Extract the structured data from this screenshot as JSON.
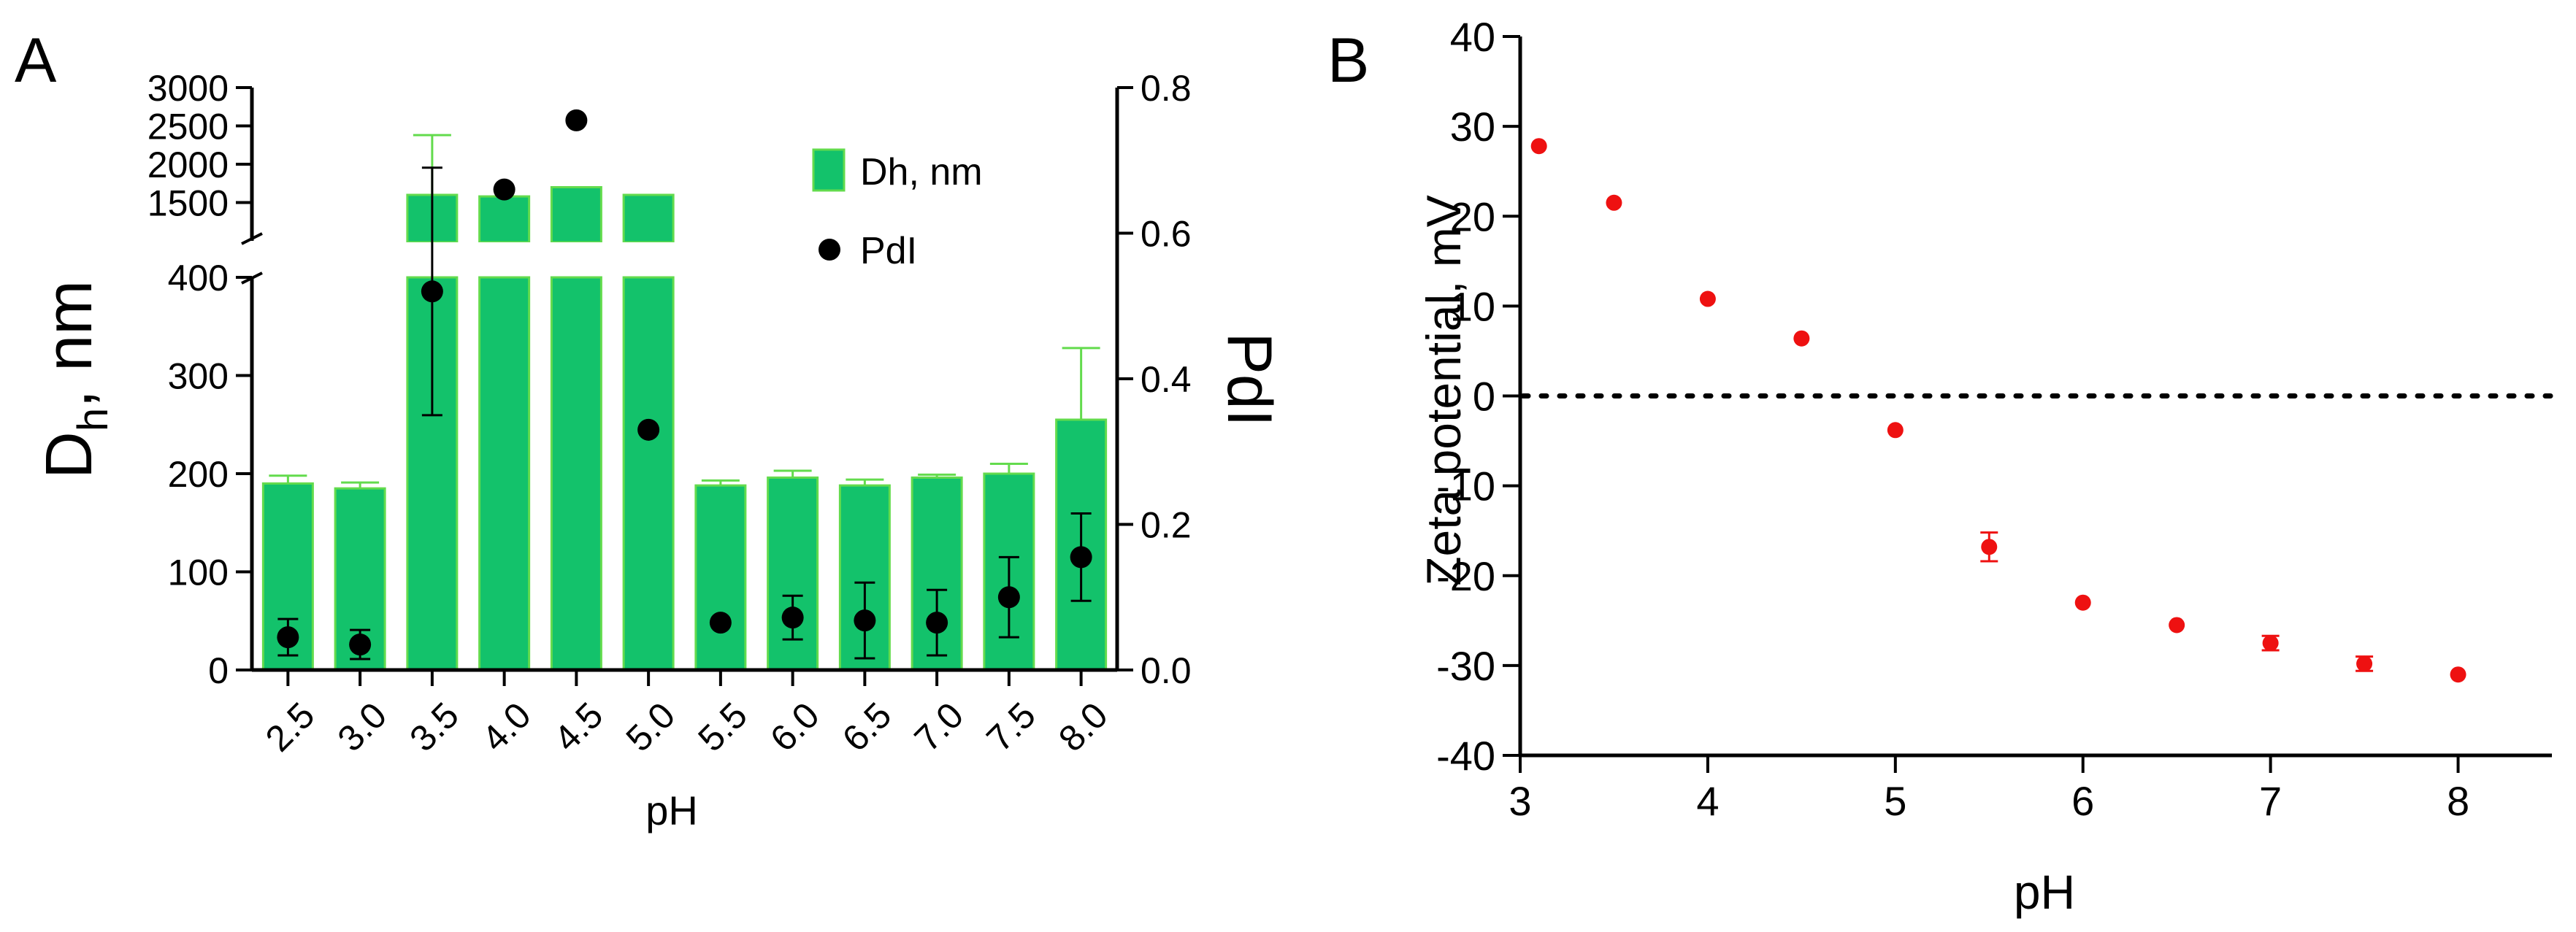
{
  "colors": {
    "bar": "#13C26B",
    "bar_edge": "#63DB4D",
    "error_bar_bar": "#63DB4D",
    "pdi": "#000000",
    "zeta": "#EE1111",
    "axis": "#000000"
  },
  "chart_data": [
    {
      "panel_label": "A",
      "type": "bar",
      "categories": [
        "2.5",
        "3.0",
        "3.5",
        "4.0",
        "4.5",
        "5.0",
        "5.5",
        "6.0",
        "6.5",
        "7.0",
        "7.5",
        "8.0"
      ],
      "xlabel": "pH",
      "ylabel_main": "D",
      "ylabel_sub": "h",
      "ylabel_rest": ", nm",
      "y2label": "PdI",
      "ylim_lower": [
        0,
        400
      ],
      "ylim_upper": [
        1000,
        3000
      ],
      "yticks_lower": [
        {
          "v": 0,
          "label": "0"
        },
        {
          "v": 100,
          "label": "100"
        },
        {
          "v": 200,
          "label": "200"
        },
        {
          "v": 300,
          "label": "300"
        },
        {
          "v": 400,
          "label": "400"
        }
      ],
      "yticks_upper": [
        {
          "v": 1500,
          "label": "1500"
        },
        {
          "v": 2000,
          "label": "2000"
        },
        {
          "v": 2500,
          "label": "2500"
        },
        {
          "v": 3000,
          "label": "3000"
        }
      ],
      "y2lim": [
        0,
        0.8
      ],
      "y2ticks": [
        {
          "v": 0,
          "label": "0.0"
        },
        {
          "v": 0.2,
          "label": "0.2"
        },
        {
          "v": 0.4,
          "label": "0.4"
        },
        {
          "v": 0.6,
          "label": "0.6"
        },
        {
          "v": 0.8,
          "label": "0.8"
        }
      ],
      "series": [
        {
          "name": "Dh, nm",
          "axis": "left",
          "kind": "bar",
          "values": [
            190,
            185,
            1600,
            1580,
            1700,
            1600,
            188,
            196,
            188,
            196,
            200,
            255
          ],
          "errors": [
            8,
            6,
            780,
            null,
            null,
            null,
            5,
            7,
            6,
            3,
            10,
            73
          ]
        },
        {
          "name": "PdI",
          "axis": "right",
          "kind": "scatter",
          "values": [
            0.045,
            0.035,
            0.52,
            0.66,
            0.755,
            0.33,
            0.065,
            0.072,
            0.068,
            0.065,
            0.1,
            0.155
          ],
          "errors": [
            0.025,
            0.02,
            0.17,
            null,
            null,
            null,
            null,
            0.03,
            0.052,
            0.045,
            0.055,
            0.06
          ]
        }
      ],
      "legend": {
        "position": "top-right",
        "entries": [
          "Dh, nm",
          "PdI"
        ]
      }
    },
    {
      "panel_label": "B",
      "type": "scatter",
      "xlabel": "pH",
      "ylabel": "Zeta potential, mV",
      "xlim": [
        3,
        8.5
      ],
      "ylim": [
        -40,
        40
      ],
      "xticks": [
        {
          "v": 3,
          "label": "3"
        },
        {
          "v": 4,
          "label": "4"
        },
        {
          "v": 5,
          "label": "5"
        },
        {
          "v": 6,
          "label": "6"
        },
        {
          "v": 7,
          "label": "7"
        },
        {
          "v": 8,
          "label": "8"
        }
      ],
      "yticks": [
        {
          "v": 40,
          "label": "40"
        },
        {
          "v": 30,
          "label": "30"
        },
        {
          "v": 20,
          "label": "20"
        },
        {
          "v": 10,
          "label": "10"
        },
        {
          "v": 0,
          "label": "0"
        },
        {
          "v": -10,
          "label": "-10"
        },
        {
          "v": -20,
          "label": "-20"
        },
        {
          "v": -30,
          "label": "-30"
        },
        {
          "v": -40,
          "label": "-40"
        }
      ],
      "reference_line": {
        "y": 0,
        "style": "dotted"
      },
      "x": [
        3.1,
        3.5,
        4.0,
        4.5,
        5.0,
        5.5,
        6.0,
        6.5,
        7.0,
        7.5,
        8.0
      ],
      "y": [
        27.8,
        21.5,
        10.8,
        6.4,
        -3.8,
        -16.8,
        -23.0,
        -25.5,
        -27.5,
        -29.8,
        -31.0
      ],
      "errors": [
        0.4,
        0.4,
        0.3,
        0.3,
        0.3,
        1.6,
        0.3,
        0.3,
        0.8,
        0.8,
        0.3
      ]
    }
  ]
}
